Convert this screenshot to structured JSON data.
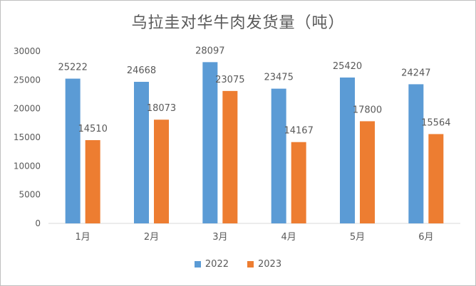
{
  "colors": {
    "series_2022": "#5b9bd5",
    "series_2023": "#ed7d31",
    "axis": "#d9d9d9",
    "text": "#595959"
  },
  "chart_data": {
    "type": "bar",
    "title": "乌拉圭对华牛肉发货量（吨）",
    "categories": [
      "1月",
      "2月",
      "3月",
      "4月",
      "5月",
      "6月"
    ],
    "series": [
      {
        "name": "2022",
        "values": [
          25222,
          24668,
          28097,
          23475,
          25420,
          24247
        ]
      },
      {
        "name": "2023",
        "values": [
          14510,
          18073,
          23075,
          14167,
          17800,
          15564
        ]
      }
    ],
    "ylim": [
      0,
      30000
    ],
    "yticks": [
      0,
      5000,
      10000,
      15000,
      20000,
      25000,
      30000
    ],
    "xlabel": "",
    "ylabel": "",
    "grid": false,
    "legend_position": "bottom",
    "data_labels": true
  }
}
